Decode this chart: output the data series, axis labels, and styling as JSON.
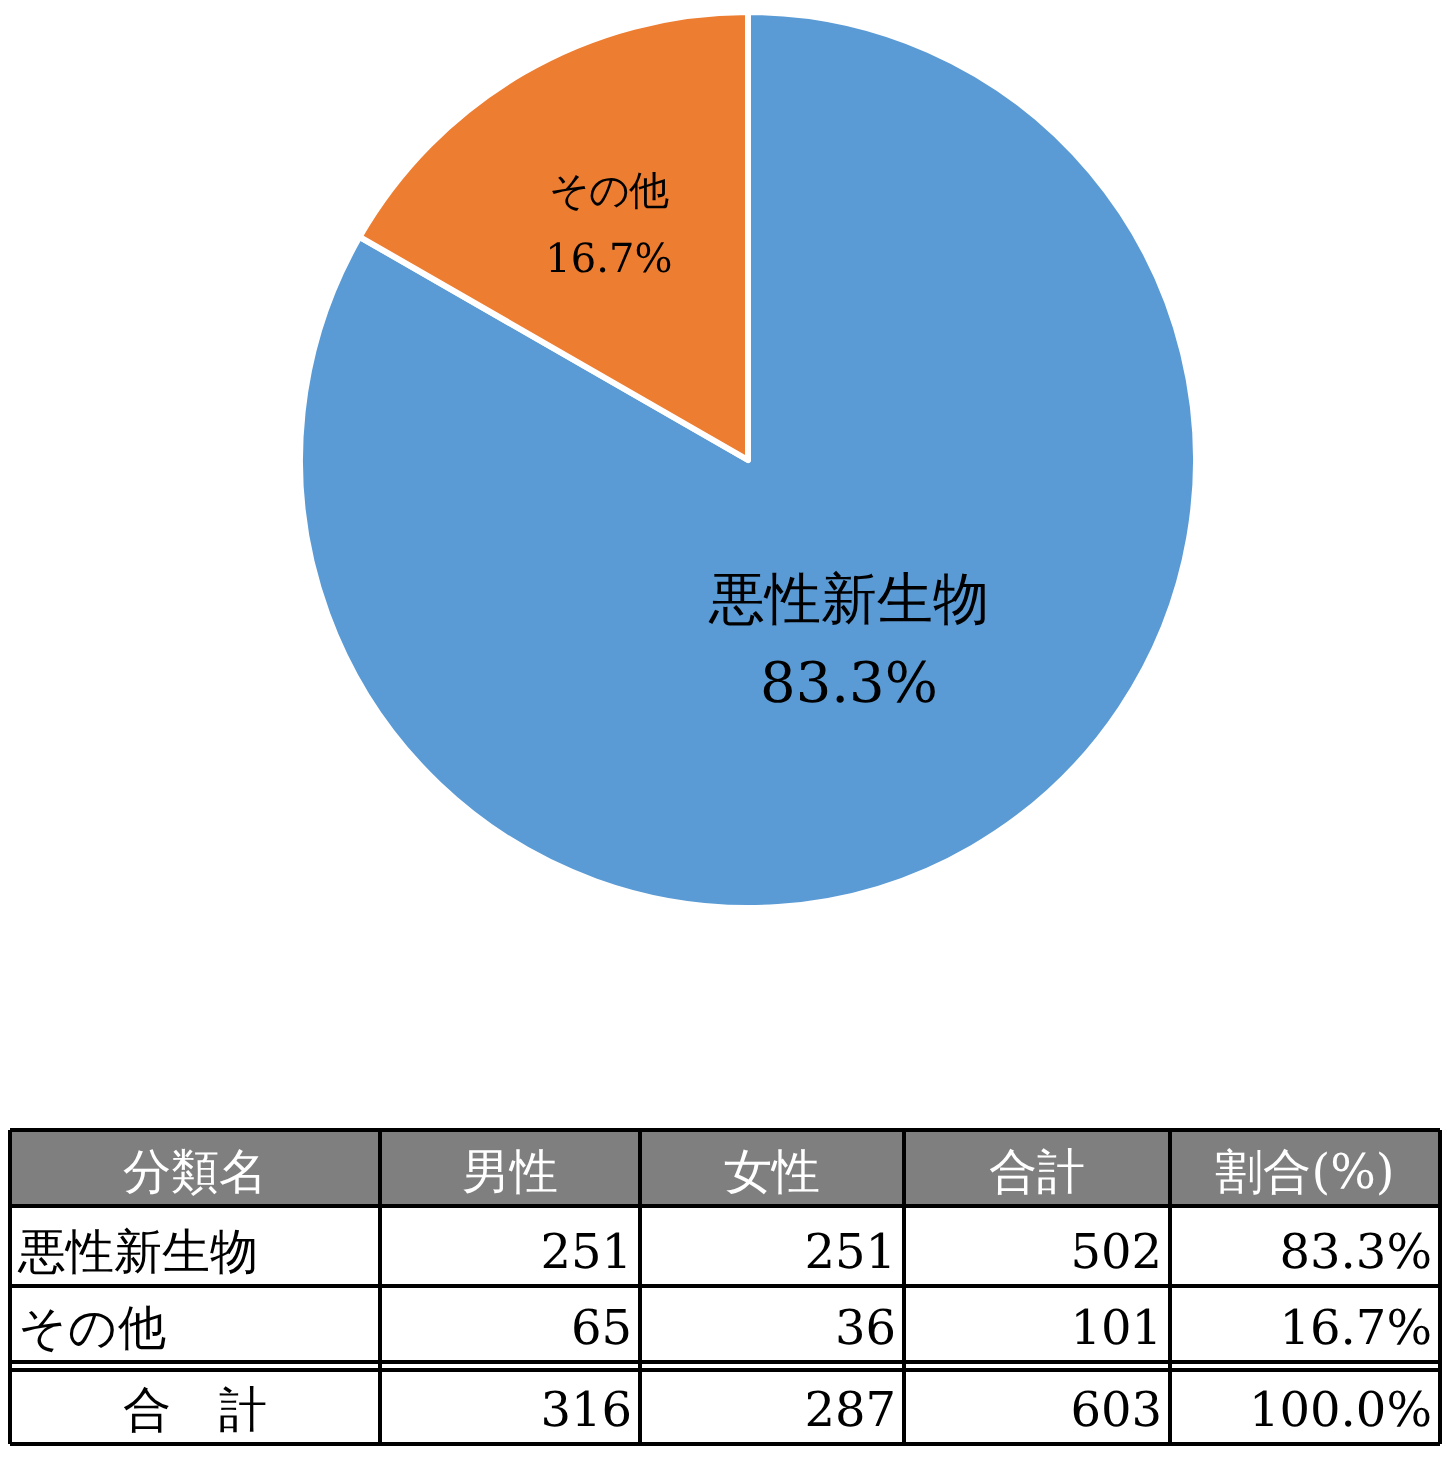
{
  "chart_data": [
    {
      "type": "pie",
      "categories": [
        "悪性新生物",
        "その他"
      ],
      "values": [
        83.3,
        16.7
      ],
      "colors": [
        "#5b9bd5",
        "#ed7d31"
      ],
      "value_labels": [
        "83.3%",
        "16.7%"
      ]
    },
    {
      "type": "other",
      "data_labels": true,
      "ylabel": "分類名",
      "categories": [
        "悪性新生物",
        "その他",
        "合　計"
      ],
      "series": [
        {
          "name": "男性",
          "values": [
            251,
            65,
            316
          ]
        },
        {
          "name": "女性",
          "values": [
            251,
            36,
            287
          ]
        },
        {
          "name": "合計",
          "values": [
            502,
            101,
            603
          ]
        },
        {
          "name": "割合(%)",
          "values": [
            83.3,
            16.7,
            100.0
          ],
          "value_labels": [
            "83.3%",
            "16.7%",
            "100.0%"
          ]
        }
      ]
    }
  ]
}
